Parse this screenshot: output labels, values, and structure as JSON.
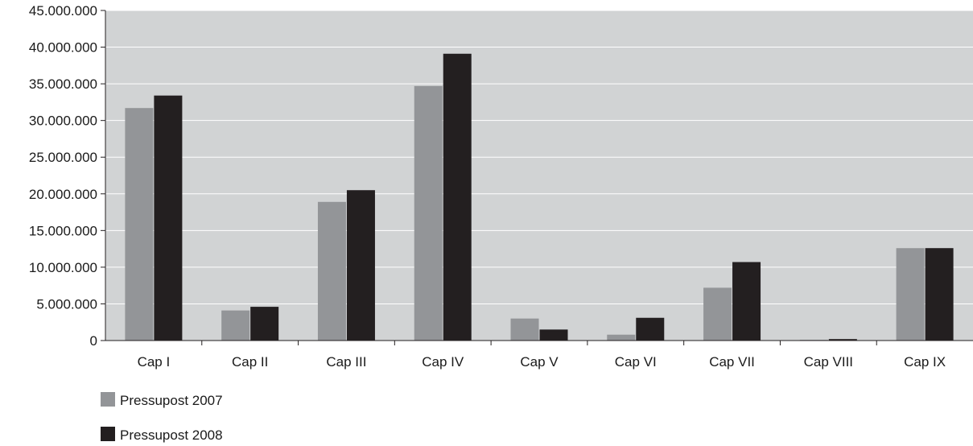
{
  "chart_data": {
    "type": "bar",
    "title": "",
    "xlabel": "",
    "ylabel": "",
    "categories": [
      "Cap I",
      "Cap II",
      "Cap III",
      "Cap IV",
      "Cap V",
      "Cap VI",
      "Cap VII",
      "Cap VIII",
      "Cap IX"
    ],
    "series": [
      {
        "name": "Pressupost 2007",
        "color": "#939598",
        "values": [
          31700000,
          4100000,
          18900000,
          34700000,
          3000000,
          800000,
          7200000,
          100000,
          12600000
        ]
      },
      {
        "name": "Pressupost 2008",
        "color": "#231f20",
        "values": [
          33400000,
          4600000,
          20500000,
          39100000,
          1500000,
          3100000,
          10700000,
          200000,
          12600000
        ]
      }
    ],
    "ylim": [
      0,
      45000000
    ],
    "yticks": [
      0,
      5000000,
      10000000,
      15000000,
      20000000,
      25000000,
      30000000,
      35000000,
      40000000,
      45000000
    ],
    "ytick_labels": [
      "0",
      "5.000.000",
      "10.000.000",
      "15.000.000",
      "20.000.000",
      "25.000.000",
      "30.000.000",
      "35.000.000",
      "40.000.000",
      "45.000.000"
    ],
    "grid": true,
    "plot_background": "#d1d3d4",
    "legend": {
      "position": "bottom-left",
      "entries": [
        "Pressupost 2007",
        "Pressupost 2008"
      ]
    }
  }
}
